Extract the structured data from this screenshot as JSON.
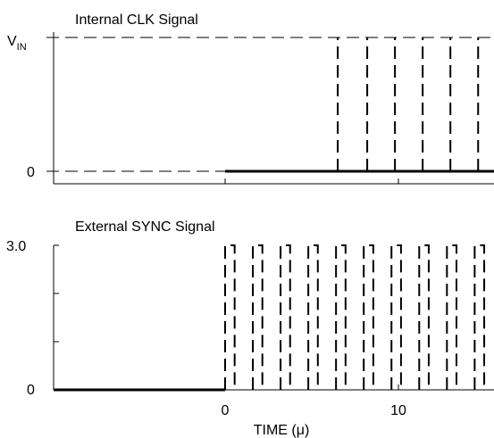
{
  "chart_data": [
    {
      "type": "line",
      "title": "Internal CLK Signal",
      "y_tick_labels": [
        {
          "value": 1,
          "label": "V",
          "subscript": "IN"
        },
        {
          "value": 0,
          "label": "0"
        }
      ],
      "ylim": [
        0,
        1
      ],
      "x_tick_values": [
        0,
        10
      ],
      "series": [
        {
          "style": "solid",
          "points": [
            [
              0,
              0
            ],
            [
              15,
              0
            ]
          ]
        },
        {
          "style": "dashed",
          "pulse_edges": [
            6.5,
            8.2,
            9.8,
            11.4,
            13.0,
            14.6
          ]
        }
      ],
      "reference_lines": [
        {
          "style": "dashed",
          "y": 1
        },
        {
          "style": "dashed",
          "y": 0
        }
      ]
    },
    {
      "type": "line",
      "title": "External SYNC Signal",
      "y_tick_labels": [
        {
          "value": 3.0,
          "label": "3.0"
        },
        {
          "value": 0,
          "label": "0"
        }
      ],
      "ylim": [
        0,
        3.0
      ],
      "x_tick_values": [
        0,
        10
      ],
      "x_tick_labels": [
        "0",
        "10"
      ],
      "xlabel": "TIME (",
      "xlabel_unit": "μ",
      "xlabel_close": ")",
      "series": [
        {
          "style": "solid",
          "points": [
            [
              -10,
              0
            ],
            [
              0,
              0
            ]
          ]
        },
        {
          "style": "dashed",
          "pulse_period": 1.6,
          "pulse_width": 0.55,
          "pulse_starts": [
            0,
            1.6,
            3.2,
            4.8,
            6.4,
            8.0,
            9.6,
            11.2,
            12.8,
            14.4
          ],
          "high": 3.0
        }
      ]
    }
  ]
}
